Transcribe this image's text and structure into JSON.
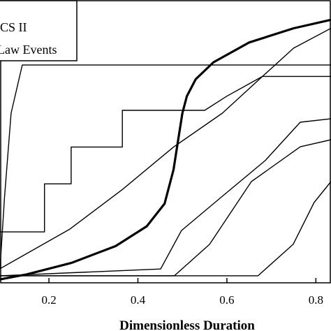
{
  "chart_data": {
    "type": "line",
    "x_label": "Dimensionless Duration",
    "xlim": [
      0.09,
      0.834
    ],
    "ylim": [
      0,
      1
    ],
    "xticks": [
      0.2,
      0.4,
      0.6,
      0.8
    ],
    "series": [
      {
        "name": "CS II",
        "color": "#000000",
        "width": 3.2,
        "x": [
          0.09,
          0.15,
          0.25,
          0.35,
          0.42,
          0.46,
          0.48,
          0.49,
          0.5,
          0.51,
          0.53,
          0.57,
          0.65,
          0.75,
          0.834
        ],
        "values": [
          0.012,
          0.03,
          0.07,
          0.13,
          0.2,
          0.28,
          0.4,
          0.5,
          0.6,
          0.66,
          0.72,
          0.78,
          0.85,
          0.9,
          0.93
        ]
      },
      {
        "name": "Law Events",
        "color": "#000000",
        "width": 1.4,
        "x": [
          0.09,
          0.1,
          0.115,
          0.14,
          0.834
        ],
        "values": [
          0.05,
          0.3,
          0.6,
          0.77,
          0.77
        ]
      },
      {
        "color": "#000000",
        "width": 1.4,
        "x": [
          0.09,
          0.19,
          0.19,
          0.25,
          0.25,
          0.365,
          0.365,
          0.55,
          0.6,
          0.68,
          0.834
        ],
        "values": [
          0.18,
          0.18,
          0.35,
          0.35,
          0.48,
          0.48,
          0.61,
          0.61,
          0.66,
          0.73,
          0.73
        ]
      },
      {
        "color": "#000000",
        "width": 1.4,
        "x": [
          0.09,
          0.247,
          0.365,
          0.48,
          0.59,
          0.68,
          0.75,
          0.834
        ],
        "values": [
          0.05,
          0.19,
          0.33,
          0.48,
          0.6,
          0.73,
          0.83,
          0.9
        ]
      },
      {
        "color": "#000000",
        "width": 1.4,
        "x": [
          0.09,
          0.451,
          0.498,
          0.592,
          0.686,
          0.765,
          0.834
        ],
        "values": [
          0.025,
          0.049,
          0.185,
          0.309,
          0.432,
          0.568,
          0.58
        ]
      },
      {
        "color": "#000000",
        "width": 1.4,
        "x": [
          0.09,
          0.482,
          0.561,
          0.655,
          0.765,
          0.834
        ],
        "values": [
          0.025,
          0.025,
          0.136,
          0.358,
          0.481,
          0.506
        ]
      },
      {
        "color": "#000000",
        "width": 1.4,
        "x": [
          0.09,
          0.67,
          0.749,
          0.796,
          0.834
        ],
        "values": [
          0.025,
          0.025,
          0.136,
          0.284,
          0.358
        ]
      }
    ]
  }
}
